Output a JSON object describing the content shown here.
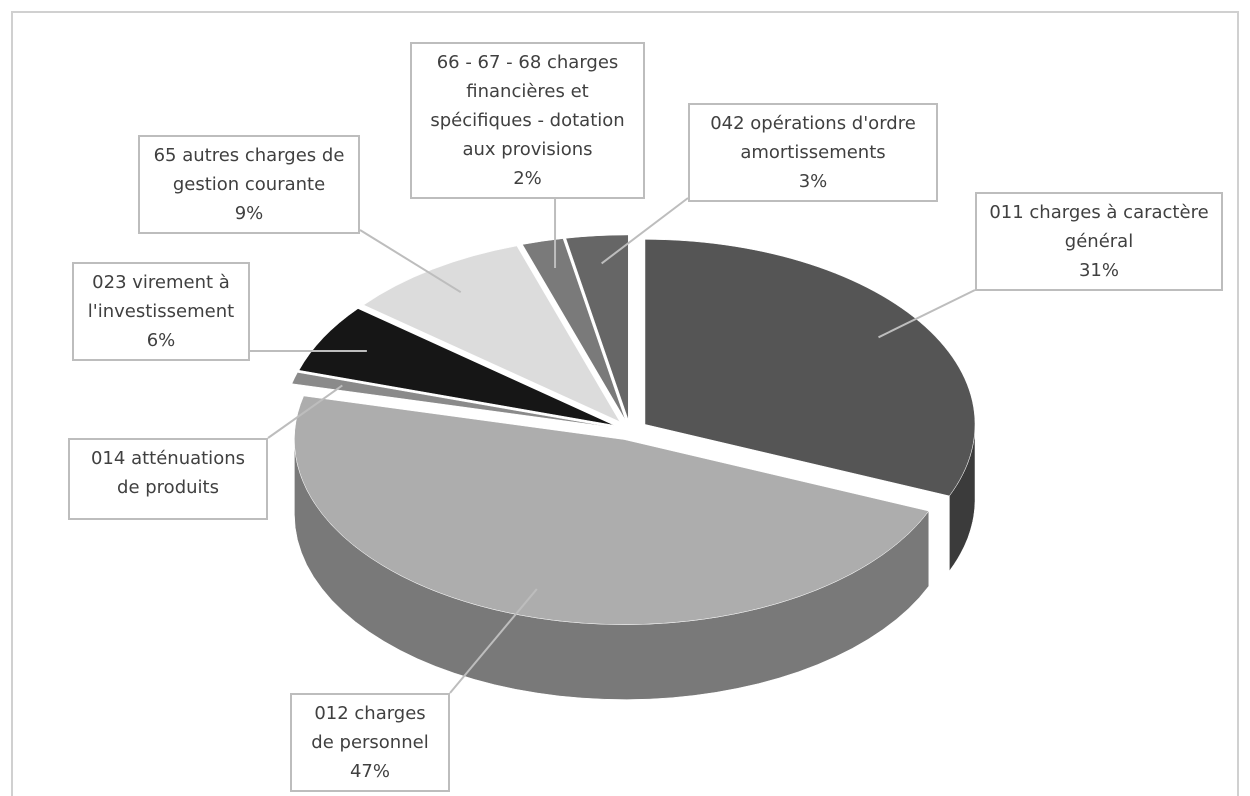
{
  "chart_data": {
    "type": "pie",
    "categories": [
      "011 charges à caractère général",
      "012 charges de personnel",
      "014 atténuations de produits",
      "023 virement à l'investissement",
      "65 autres charges de gestion courante",
      "66 - 67 - 68 charges financières et spécifiques - dotation aux provisions",
      "042 opérations d'ordre amortissements"
    ],
    "values": [
      31,
      47,
      1,
      6,
      9,
      2,
      3
    ],
    "value_labels": [
      "31%",
      "47%",
      null,
      "6%",
      "9%",
      "2%",
      "3%"
    ],
    "colors": [
      "#555555",
      "#adadad",
      "#8a8a8a",
      "#161616",
      "#dcdcdc",
      "#7a7a7a",
      "#666666"
    ]
  }
}
